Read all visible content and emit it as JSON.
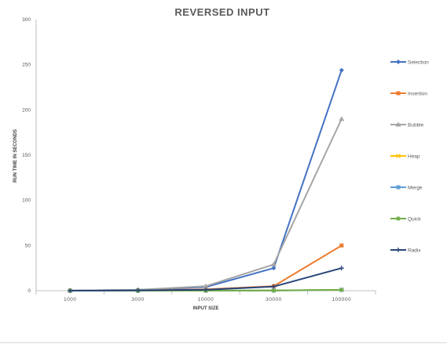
{
  "chart_data": {
    "type": "line",
    "title": "REVERSED INPUT",
    "xlabel": "INPUT SIZE",
    "ylabel": "RUN TIME IN SECONDS",
    "categories": [
      "1000",
      "3000",
      "10000",
      "30000",
      "100000"
    ],
    "ylim": [
      0,
      300
    ],
    "yticks": [
      0,
      50,
      100,
      150,
      200,
      250,
      300
    ],
    "grid": false,
    "legend_position": "right",
    "series": [
      {
        "name": "Selection",
        "color": "#4472c4",
        "marker": "diamond",
        "values": [
          0.1,
          0.9,
          4,
          25,
          244
        ]
      },
      {
        "name": "Insertion",
        "color": "#ed7d31",
        "marker": "square",
        "values": [
          0.05,
          0.4,
          1.5,
          5,
          50
        ]
      },
      {
        "name": "Bubble",
        "color": "#a5a5a5",
        "marker": "triangle",
        "values": [
          0.1,
          1,
          5,
          29,
          190
        ]
      },
      {
        "name": "Heap",
        "color": "#ffc000",
        "marker": "x",
        "values": [
          0.01,
          0.02,
          0.05,
          0.2,
          0.8
        ]
      },
      {
        "name": "Merge",
        "color": "#5b9bd5",
        "marker": "asterisk",
        "values": [
          0.01,
          0.02,
          0.05,
          0.2,
          0.9
        ]
      },
      {
        "name": "Quick",
        "color": "#70ad47",
        "marker": "star",
        "values": [
          0.01,
          0.02,
          0.05,
          0.2,
          1
        ]
      },
      {
        "name": "Radix",
        "color": "#264478",
        "marker": "plus",
        "values": [
          0.05,
          0.3,
          1,
          4.5,
          25
        ]
      }
    ]
  }
}
